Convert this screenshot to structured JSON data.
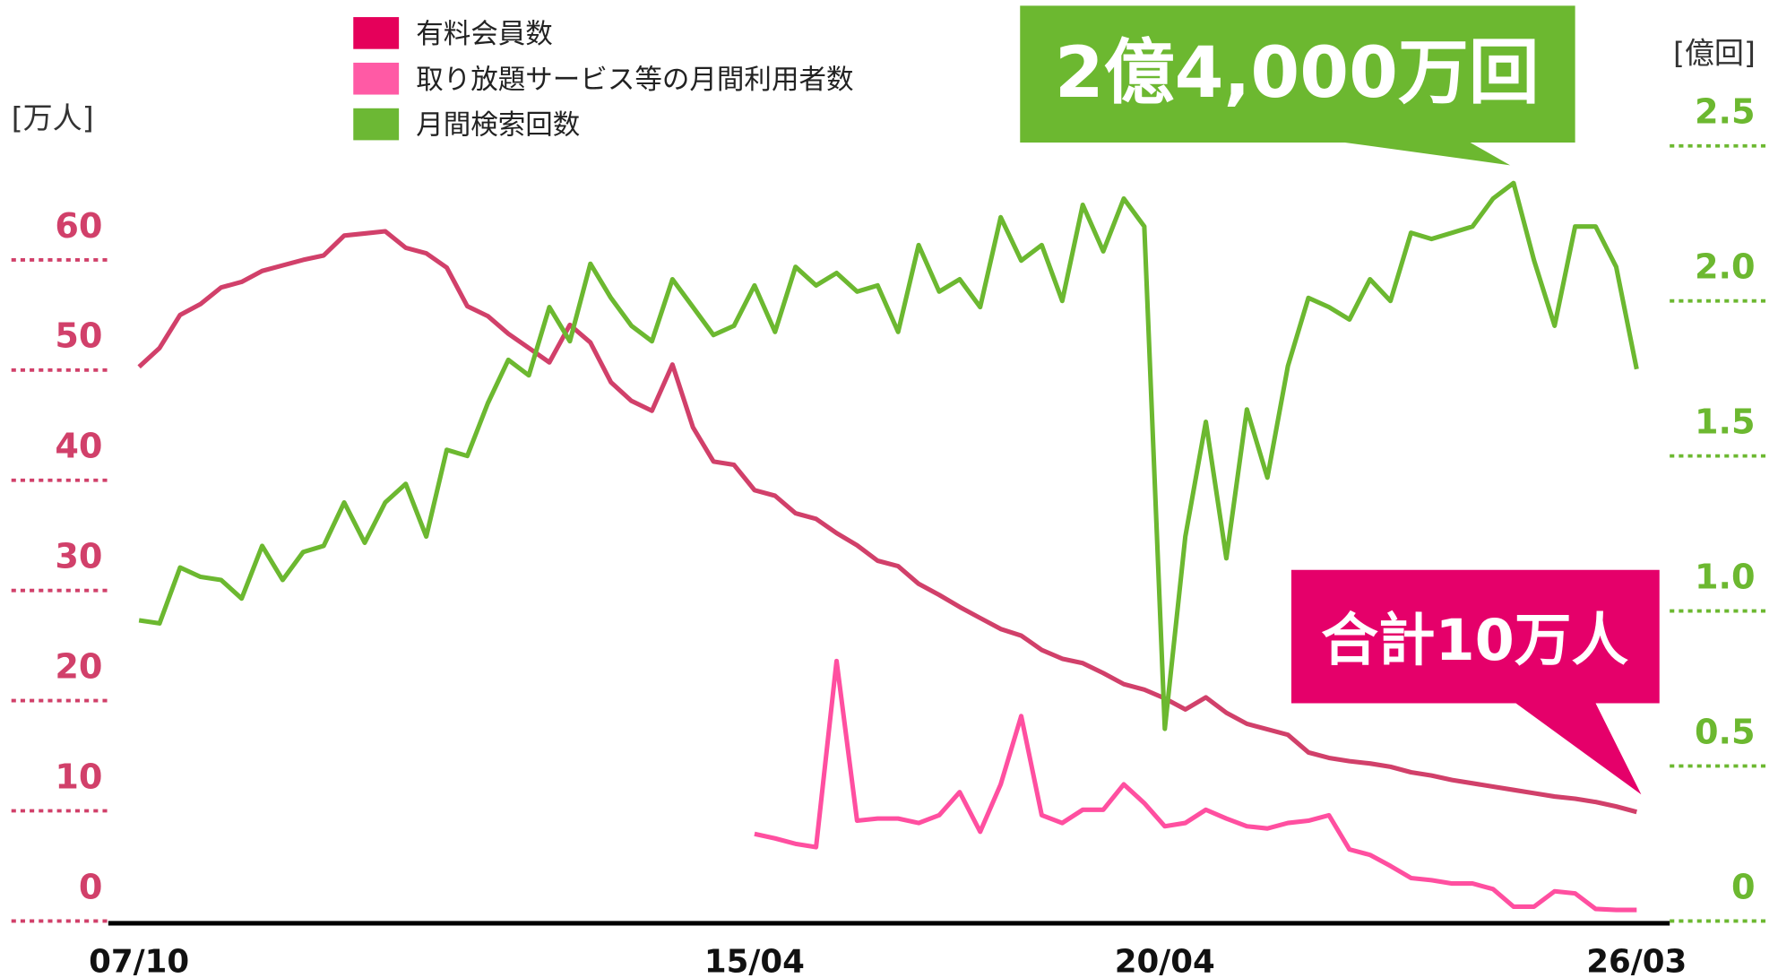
{
  "chart_data": {
    "type": "line",
    "annotations": [
      "2億4,000万回",
      "合計10万人"
    ],
    "ylabel": "[万人]",
    "y2label": "[億回]",
    "categories": [
      "07/10",
      null,
      null,
      null,
      null,
      null,
      null,
      null,
      null,
      null,
      null,
      null,
      null,
      null,
      null,
      null,
      null,
      null,
      null,
      null,
      null,
      null,
      null,
      null,
      null,
      null,
      null,
      null,
      null,
      null,
      "15/04",
      null,
      null,
      null,
      null,
      null,
      null,
      null,
      null,
      null,
      null,
      null,
      null,
      null,
      null,
      null,
      null,
      null,
      null,
      null,
      "20/04",
      null,
      null,
      null,
      null,
      null,
      null,
      null,
      null,
      null,
      null,
      null,
      null,
      null,
      null,
      null,
      null,
      null,
      null,
      null,
      null,
      null,
      null,
      "26/03"
    ],
    "series": [
      {
        "name": "有料会員数",
        "color": "#d1406a",
        "swatch": "#e5005a",
        "values": [
          50.3,
          52,
          55,
          56,
          57.5,
          58,
          59,
          59.5,
          60,
          60.4,
          62.2,
          62.4,
          62.6,
          61.1,
          60.6,
          59.3,
          55.8,
          54.9,
          53.3,
          52,
          50.7,
          54.1,
          52.5,
          48.9,
          47.2,
          46.3,
          50.5,
          44.8,
          41.7,
          41.4,
          39.1,
          38.6,
          37,
          36.5,
          35.2,
          34.1,
          32.7,
          32.2,
          30.6,
          29.6,
          28.5,
          27.5,
          26.5,
          25.9,
          24.6,
          23.8,
          23.4,
          22.5,
          21.5,
          21,
          20.2,
          19.2,
          20.3,
          18.9,
          17.9,
          17.4,
          16.9,
          15.3,
          14.8,
          14.5,
          14.3,
          14,
          13.5,
          13.2,
          12.8,
          12.5,
          12.2,
          11.9,
          11.6,
          11.3,
          11.1,
          10.8,
          10.4,
          9.9
        ]
      },
      {
        "name": "取り放題サービス等の月間利用者数",
        "color": "#ff4fa0",
        "swatch": "#ff5aa5",
        "values": [
          null,
          null,
          null,
          null,
          null,
          null,
          null,
          null,
          null,
          null,
          null,
          null,
          null,
          null,
          null,
          null,
          null,
          null,
          null,
          null,
          null,
          null,
          null,
          null,
          null,
          null,
          null,
          null,
          null,
          null,
          7.9,
          7.5,
          7,
          6.7,
          23.6,
          9.1,
          9.3,
          9.3,
          8.9,
          9.6,
          11.7,
          8.1,
          12.4,
          18.6,
          9.6,
          8.9,
          10.1,
          10.1,
          12.4,
          10.7,
          8.6,
          8.9,
          10.1,
          9.3,
          8.6,
          8.4,
          8.9,
          9.1,
          9.6,
          6.5,
          6,
          5,
          3.9,
          3.7,
          3.4,
          3.4,
          2.9,
          1.3,
          1.3,
          2.7,
          2.5,
          1.1,
          1,
          1
        ]
      },
      {
        "name": "月間検索回数",
        "color": "#6cb830",
        "swatch": "#6cb834",
        "axis": "y2",
        "values": [
          0.97,
          0.96,
          1.14,
          1.11,
          1.1,
          1.04,
          1.21,
          1.1,
          1.19,
          1.21,
          1.35,
          1.22,
          1.35,
          1.41,
          1.24,
          1.52,
          1.5,
          1.67,
          1.81,
          1.76,
          1.98,
          1.87,
          2.12,
          2.01,
          1.92,
          1.87,
          2.07,
          1.98,
          1.89,
          1.92,
          2.05,
          1.9,
          2.11,
          2.05,
          2.09,
          2.03,
          2.05,
          1.9,
          2.18,
          2.03,
          2.07,
          1.98,
          2.27,
          2.13,
          2.18,
          2,
          2.31,
          2.16,
          2.33,
          2.24,
          0.62,
          1.24,
          1.61,
          1.17,
          1.65,
          1.43,
          1.79,
          2.01,
          1.98,
          1.94,
          2.07,
          2,
          2.22,
          2.2,
          2.22,
          2.24,
          2.33,
          2.38,
          2.13,
          1.92,
          2.24,
          2.24,
          2.11,
          1.78
        ]
      }
    ],
    "ylim": [
      0,
      60
    ],
    "yticks": [
      0,
      10,
      20,
      30,
      40,
      50,
      60
    ],
    "ycolor": "#d1406a",
    "y2lim": [
      0,
      2.5
    ],
    "y2ticks": [
      0,
      0.5,
      {
        "value": 1,
        "label": "1.0"
      },
      1.5,
      {
        "value": 2,
        "label": "2.0"
      },
      2.5
    ],
    "y2color": "#6cb830",
    "annotation_colors": [
      "#6cb830",
      "#e5006a"
    ]
  }
}
